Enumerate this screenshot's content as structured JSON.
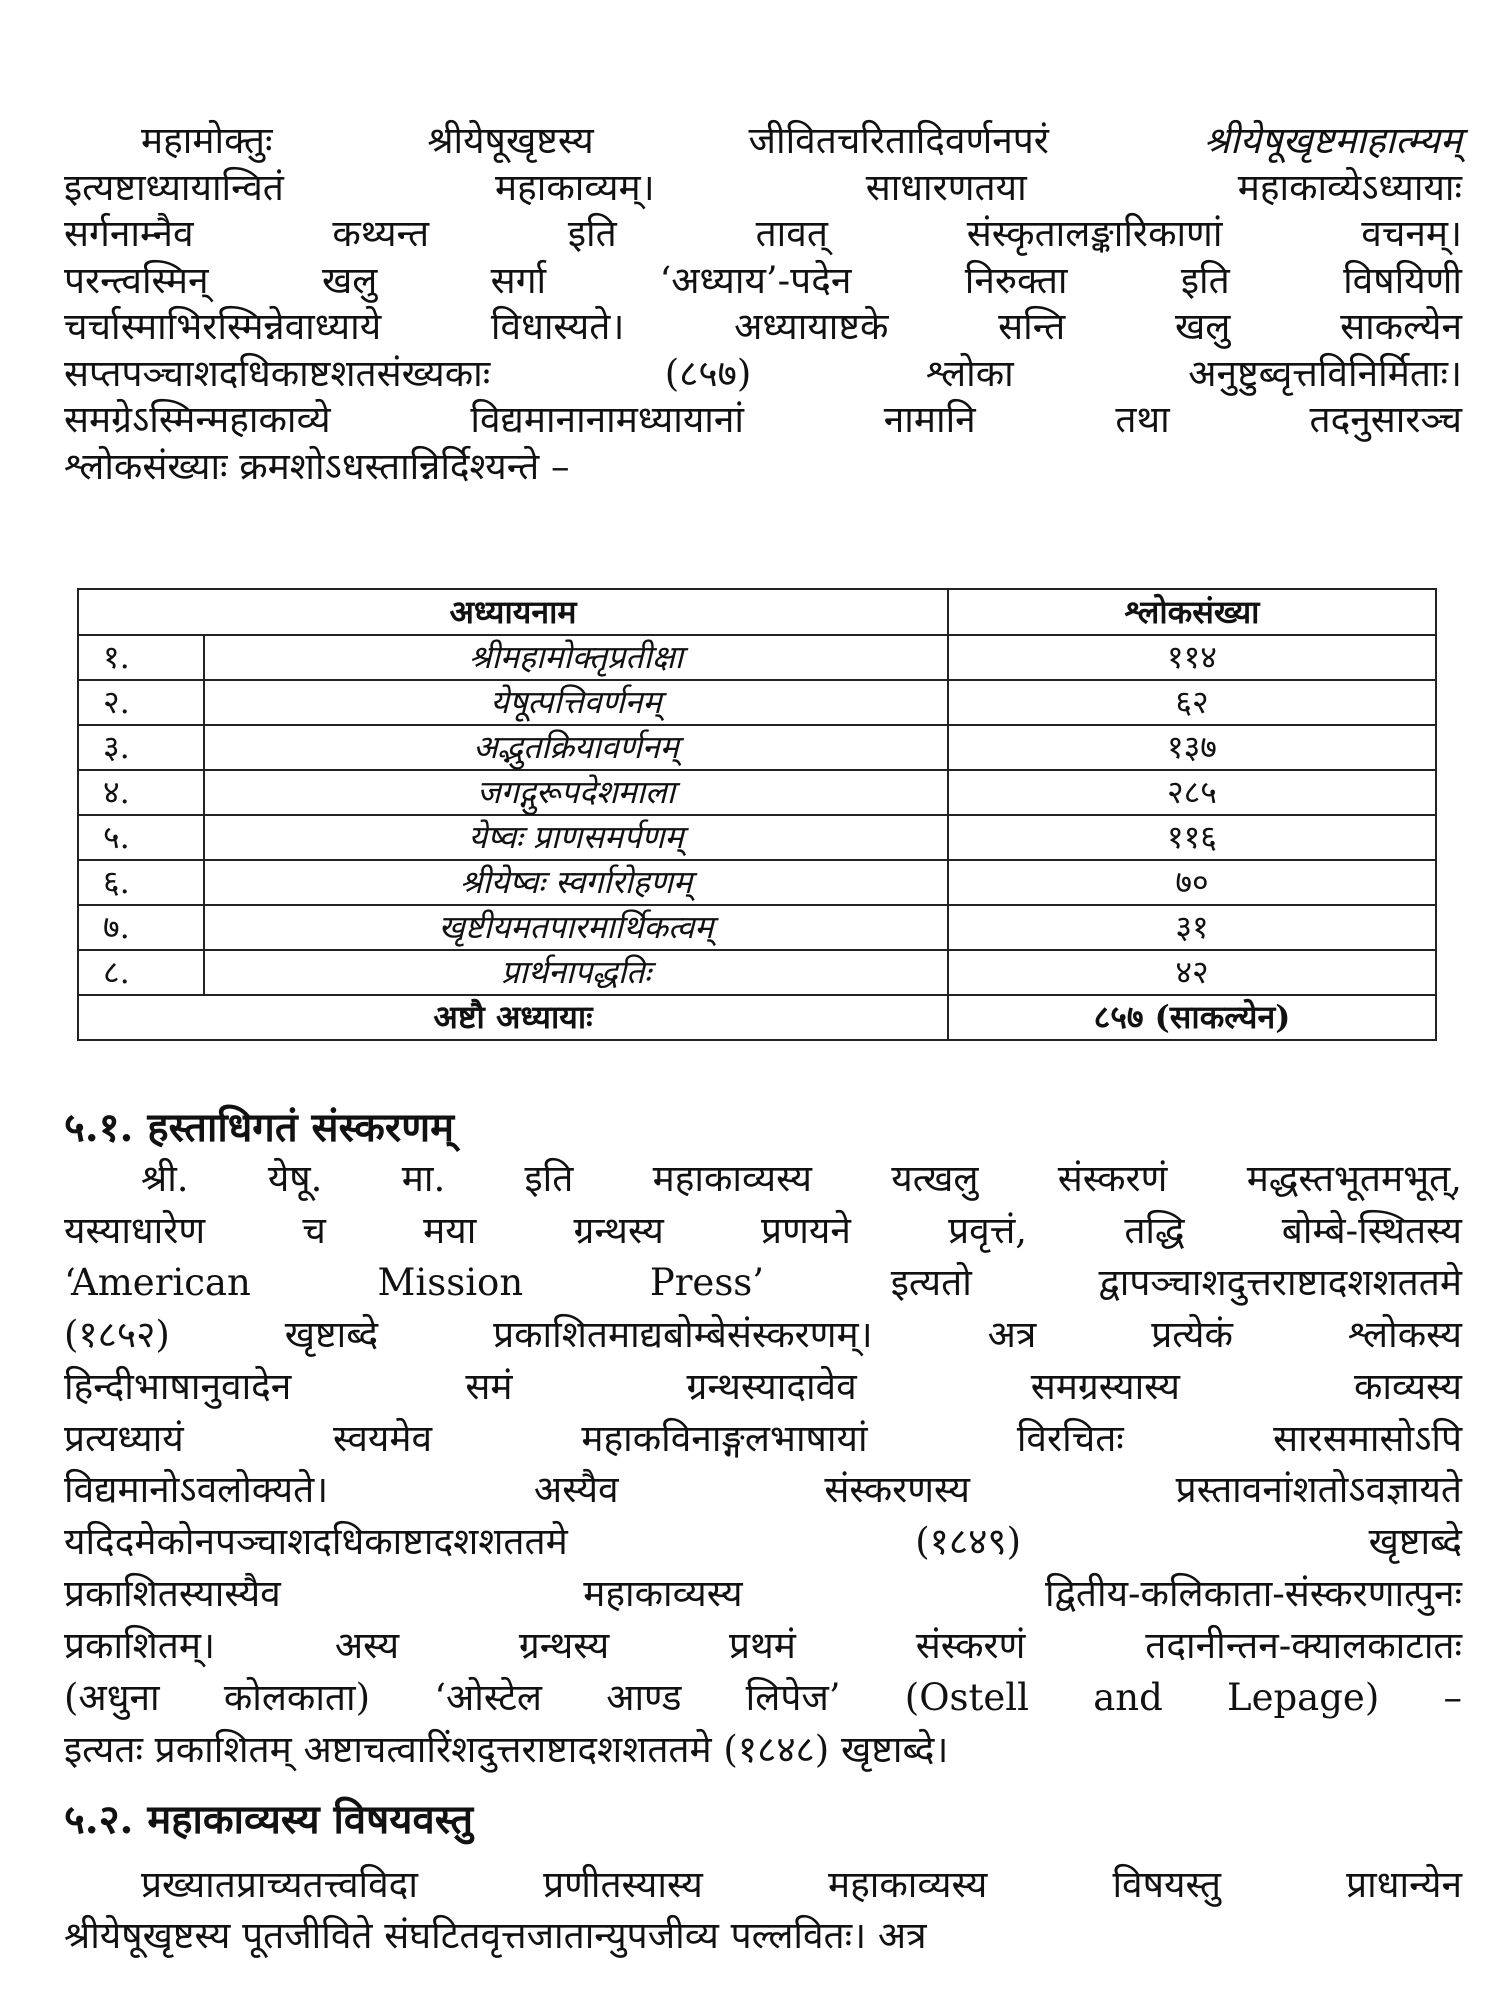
{
  "para1": {
    "lines": [
      "महामोक्तुः श्रीयेषूखृष्टस्य जीवितचरितादिवर्णनपरं",
      "इत्यष्टाध्यायान्वितं महाकाव्यम्। साधारणतया महाकाव्येऽध्यायाः",
      "सर्गनाम्नैव कथ्यन्त इति तावत् संस्कृतालङ्कारिकाणां वचनम्।",
      "परन्त्वस्मिन् खलु सर्गा ‘अध्याय’-पदेन निरुक्ता इति विषयिणी",
      "चर्चास्माभिरस्मिन्नेवाध्याये विधास्यते। अध्यायाष्टके सन्ति खलु साकल्येन",
      "सप्तपञ्चाशदधिकाष्टशतसंख्यकाः (८५७) श्लोका अनुष्टुब्वृत्तविनिर्मिताः।",
      "समग्रेऽस्मिन्महाकाव्ये विद्यमानानामध्यायानां नामानि तथा तदनुसारञ्च",
      "श्लोकसंख्याः क्रमशोऽधस्तान्निर्दिश्यन्ते –"
    ],
    "italic_title": "श्रीयेषूखृष्टमाहात्म्यम्"
  },
  "table": {
    "headers": [
      "अध्यायनाम",
      "श्लोकसंख्या"
    ],
    "rows": [
      {
        "no": "१.",
        "name": "श्रीमहामोक्तृप्रतीक्षा",
        "count": "११४"
      },
      {
        "no": "२.",
        "name": "येषूत्पत्तिवर्णनम्",
        "count": "६२"
      },
      {
        "no": "३.",
        "name": "अद्भुतक्रियावर्णनम्",
        "count": "१३७"
      },
      {
        "no": "४.",
        "name": "जगद्गुरूपदेशमाला",
        "count": "२८५"
      },
      {
        "no": "५.",
        "name": "येष्वः प्राणसमर्पणम्",
        "count": "११६"
      },
      {
        "no": "६.",
        "name": "श्रीयेष्वः स्वर्गारोहणम्",
        "count": "७०"
      },
      {
        "no": "७.",
        "name": "खृष्टीयमतपारमार्थिकत्वम्",
        "count": "३१"
      },
      {
        "no": "८.",
        "name": "प्रार्थनापद्धतिः",
        "count": "४२"
      }
    ],
    "total_label": "अष्टौ अध्यायाः",
    "total_count": "८५७ (साकल्येन)"
  },
  "section1": {
    "heading": "५.१. हस्ताधिगतं संस्करणम्",
    "lines": [
      "श्री. येषू. मा. इति महाकाव्यस्य यत्खलु संस्करणं मद्धस्तभूतमभूत्,",
      "यस्याधारेण च मया ग्रन्थस्य प्रणयने प्रवृत्तं, तद्धि बोम्बे-स्थितस्य",
      "‘American Mission Press’ इत्यतो द्वापञ्चाशदुत्तराष्टादशशततमे",
      "(१८५२) खृष्टाब्दे प्रकाशितमाद्यबोम्बेसंस्करणम्। अत्र प्रत्येकं श्लोकस्य",
      "हिन्दीभाषानुवादेन समं ग्रन्थस्यादावेव समग्रस्यास्य काव्यस्य",
      "प्रत्यध्यायं स्वयमेव महाकविनाङ्गलभाषायां विरचितः सारसमासोऽपि",
      "विद्यमानोऽवलोक्यते। अस्यैव संस्करणस्य प्रस्तावनांशतोऽवज्ञायते",
      "यदिदमेकोनपञ्चाशदधिकाष्टादशशततमे (१८४९) खृष्टाब्दे",
      "प्रकाशितस्यास्यैव महाकाव्यस्य द्वितीय-कलिकाता-संस्करणात्पुनः",
      "प्रकाशितम्। अस्य ग्रन्थस्य प्रथमं संस्करणं तदानीन्तन-क्यालकाटातः",
      "(अधुना कोलकाता) ‘ओस्टेल आण्ड लिपेज’ (Ostell and Lepage) –",
      "इत्यतः प्रकाशितम् अष्टाचत्वारिंशदुत्तराष्टादशशततमे (१८४८) खृष्टाब्दे।"
    ]
  },
  "section2": {
    "heading": "५.२. महाकाव्यस्य विषयवस्तु",
    "lines": [
      "प्रख्यातप्राच्यतत्त्वविदा प्रणीतस्यास्य महाकाव्यस्य विषयस्तु प्राधान्येन",
      "श्रीयेषूखृष्टस्य पूतजीविते संघटितवृत्तजातान्युपजीव्य पल्लवितः। अत्र"
    ]
  }
}
